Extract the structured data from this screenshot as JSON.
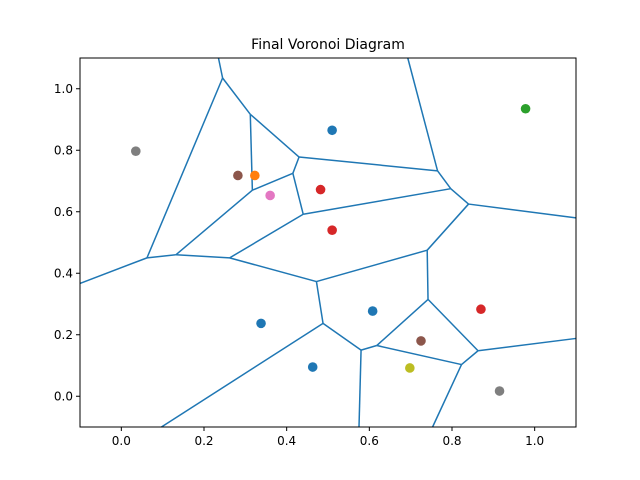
{
  "chart_data": {
    "type": "scatter",
    "title": "Final Voronoi Diagram",
    "xlabel": "",
    "ylabel": "",
    "xlim": [
      -0.1,
      1.1
    ],
    "ylim": [
      -0.1,
      1.1
    ],
    "x_ticks": [
      0.0,
      0.2,
      0.4,
      0.6,
      0.8,
      1.0
    ],
    "y_ticks": [
      0.0,
      0.2,
      0.4,
      0.6,
      0.8,
      1.0
    ],
    "x_tick_labels": [
      "0.0",
      "0.2",
      "0.4",
      "0.6",
      "0.8",
      "1.0"
    ],
    "y_tick_labels": [
      "0.0",
      "0.2",
      "0.4",
      "0.6",
      "0.8",
      "1.0"
    ],
    "grid": false,
    "edge_color": "#1f77b4",
    "points": [
      {
        "x": 0.035,
        "y": 0.797,
        "color": "#7f7f7f"
      },
      {
        "x": 0.282,
        "y": 0.718,
        "color": "#8c564b"
      },
      {
        "x": 0.323,
        "y": 0.718,
        "color": "#ff7f0e"
      },
      {
        "x": 0.36,
        "y": 0.653,
        "color": "#e377c2"
      },
      {
        "x": 0.51,
        "y": 0.865,
        "color": "#1f77b4"
      },
      {
        "x": 0.482,
        "y": 0.672,
        "color": "#d62728"
      },
      {
        "x": 0.51,
        "y": 0.54,
        "color": "#d62728"
      },
      {
        "x": 0.978,
        "y": 0.935,
        "color": "#2ca02c"
      },
      {
        "x": 0.338,
        "y": 0.237,
        "color": "#1f77b4"
      },
      {
        "x": 0.463,
        "y": 0.095,
        "color": "#1f77b4"
      },
      {
        "x": 0.608,
        "y": 0.277,
        "color": "#1f77b4"
      },
      {
        "x": 0.725,
        "y": 0.18,
        "color": "#8c564b"
      },
      {
        "x": 0.698,
        "y": 0.092,
        "color": "#bcbd22"
      },
      {
        "x": 0.87,
        "y": 0.283,
        "color": "#d62728"
      },
      {
        "x": 0.915,
        "y": 0.017,
        "color": "#7f7f7f"
      }
    ],
    "edges": [
      [
        [
          0.235,
          1.1
        ],
        [
          0.245,
          1.035
        ]
      ],
      [
        [
          0.245,
          1.035
        ],
        [
          0.062,
          0.45
        ]
      ],
      [
        [
          0.062,
          0.45
        ],
        [
          -0.1,
          0.367
        ]
      ],
      [
        [
          0.245,
          1.035
        ],
        [
          0.312,
          0.917
        ]
      ],
      [
        [
          0.312,
          0.917
        ],
        [
          0.43,
          0.778
        ]
      ],
      [
        [
          0.312,
          0.917
        ],
        [
          0.317,
          0.67
        ]
      ],
      [
        [
          0.317,
          0.67
        ],
        [
          0.415,
          0.725
        ]
      ],
      [
        [
          0.415,
          0.725
        ],
        [
          0.43,
          0.778
        ]
      ],
      [
        [
          0.415,
          0.725
        ],
        [
          0.44,
          0.592
        ]
      ],
      [
        [
          0.43,
          0.778
        ],
        [
          0.765,
          0.733
        ]
      ],
      [
        [
          0.693,
          1.1
        ],
        [
          0.765,
          0.733
        ]
      ],
      [
        [
          0.765,
          0.733
        ],
        [
          0.797,
          0.675
        ]
      ],
      [
        [
          0.44,
          0.592
        ],
        [
          0.797,
          0.675
        ]
      ],
      [
        [
          0.797,
          0.675
        ],
        [
          0.84,
          0.625
        ]
      ],
      [
        [
          0.84,
          0.625
        ],
        [
          1.1,
          0.58
        ]
      ],
      [
        [
          0.84,
          0.625
        ],
        [
          0.74,
          0.475
        ]
      ],
      [
        [
          0.74,
          0.475
        ],
        [
          0.742,
          0.315
        ]
      ],
      [
        [
          0.74,
          0.475
        ],
        [
          0.472,
          0.373
        ]
      ],
      [
        [
          0.317,
          0.67
        ],
        [
          0.132,
          0.46
        ]
      ],
      [
        [
          0.132,
          0.46
        ],
        [
          0.262,
          0.45
        ]
      ],
      [
        [
          0.44,
          0.592
        ],
        [
          0.262,
          0.45
        ]
      ],
      [
        [
          0.062,
          0.45
        ],
        [
          0.132,
          0.46
        ]
      ],
      [
        [
          0.262,
          0.45
        ],
        [
          0.472,
          0.373
        ]
      ],
      [
        [
          0.472,
          0.373
        ],
        [
          0.488,
          0.237
        ]
      ],
      [
        [
          0.488,
          0.237
        ],
        [
          0.097,
          -0.1
        ]
      ],
      [
        [
          0.488,
          0.237
        ],
        [
          0.58,
          0.15
        ]
      ],
      [
        [
          0.58,
          0.15
        ],
        [
          0.575,
          -0.1
        ]
      ],
      [
        [
          0.58,
          0.15
        ],
        [
          0.618,
          0.165
        ]
      ],
      [
        [
          0.618,
          0.165
        ],
        [
          0.742,
          0.315
        ]
      ],
      [
        [
          0.618,
          0.165
        ],
        [
          0.823,
          0.103
        ]
      ],
      [
        [
          0.742,
          0.315
        ],
        [
          0.863,
          0.148
        ]
      ],
      [
        [
          0.863,
          0.148
        ],
        [
          0.823,
          0.103
        ]
      ],
      [
        [
          0.823,
          0.103
        ],
        [
          0.753,
          -0.1
        ]
      ],
      [
        [
          0.863,
          0.148
        ],
        [
          1.1,
          0.188
        ]
      ]
    ]
  }
}
